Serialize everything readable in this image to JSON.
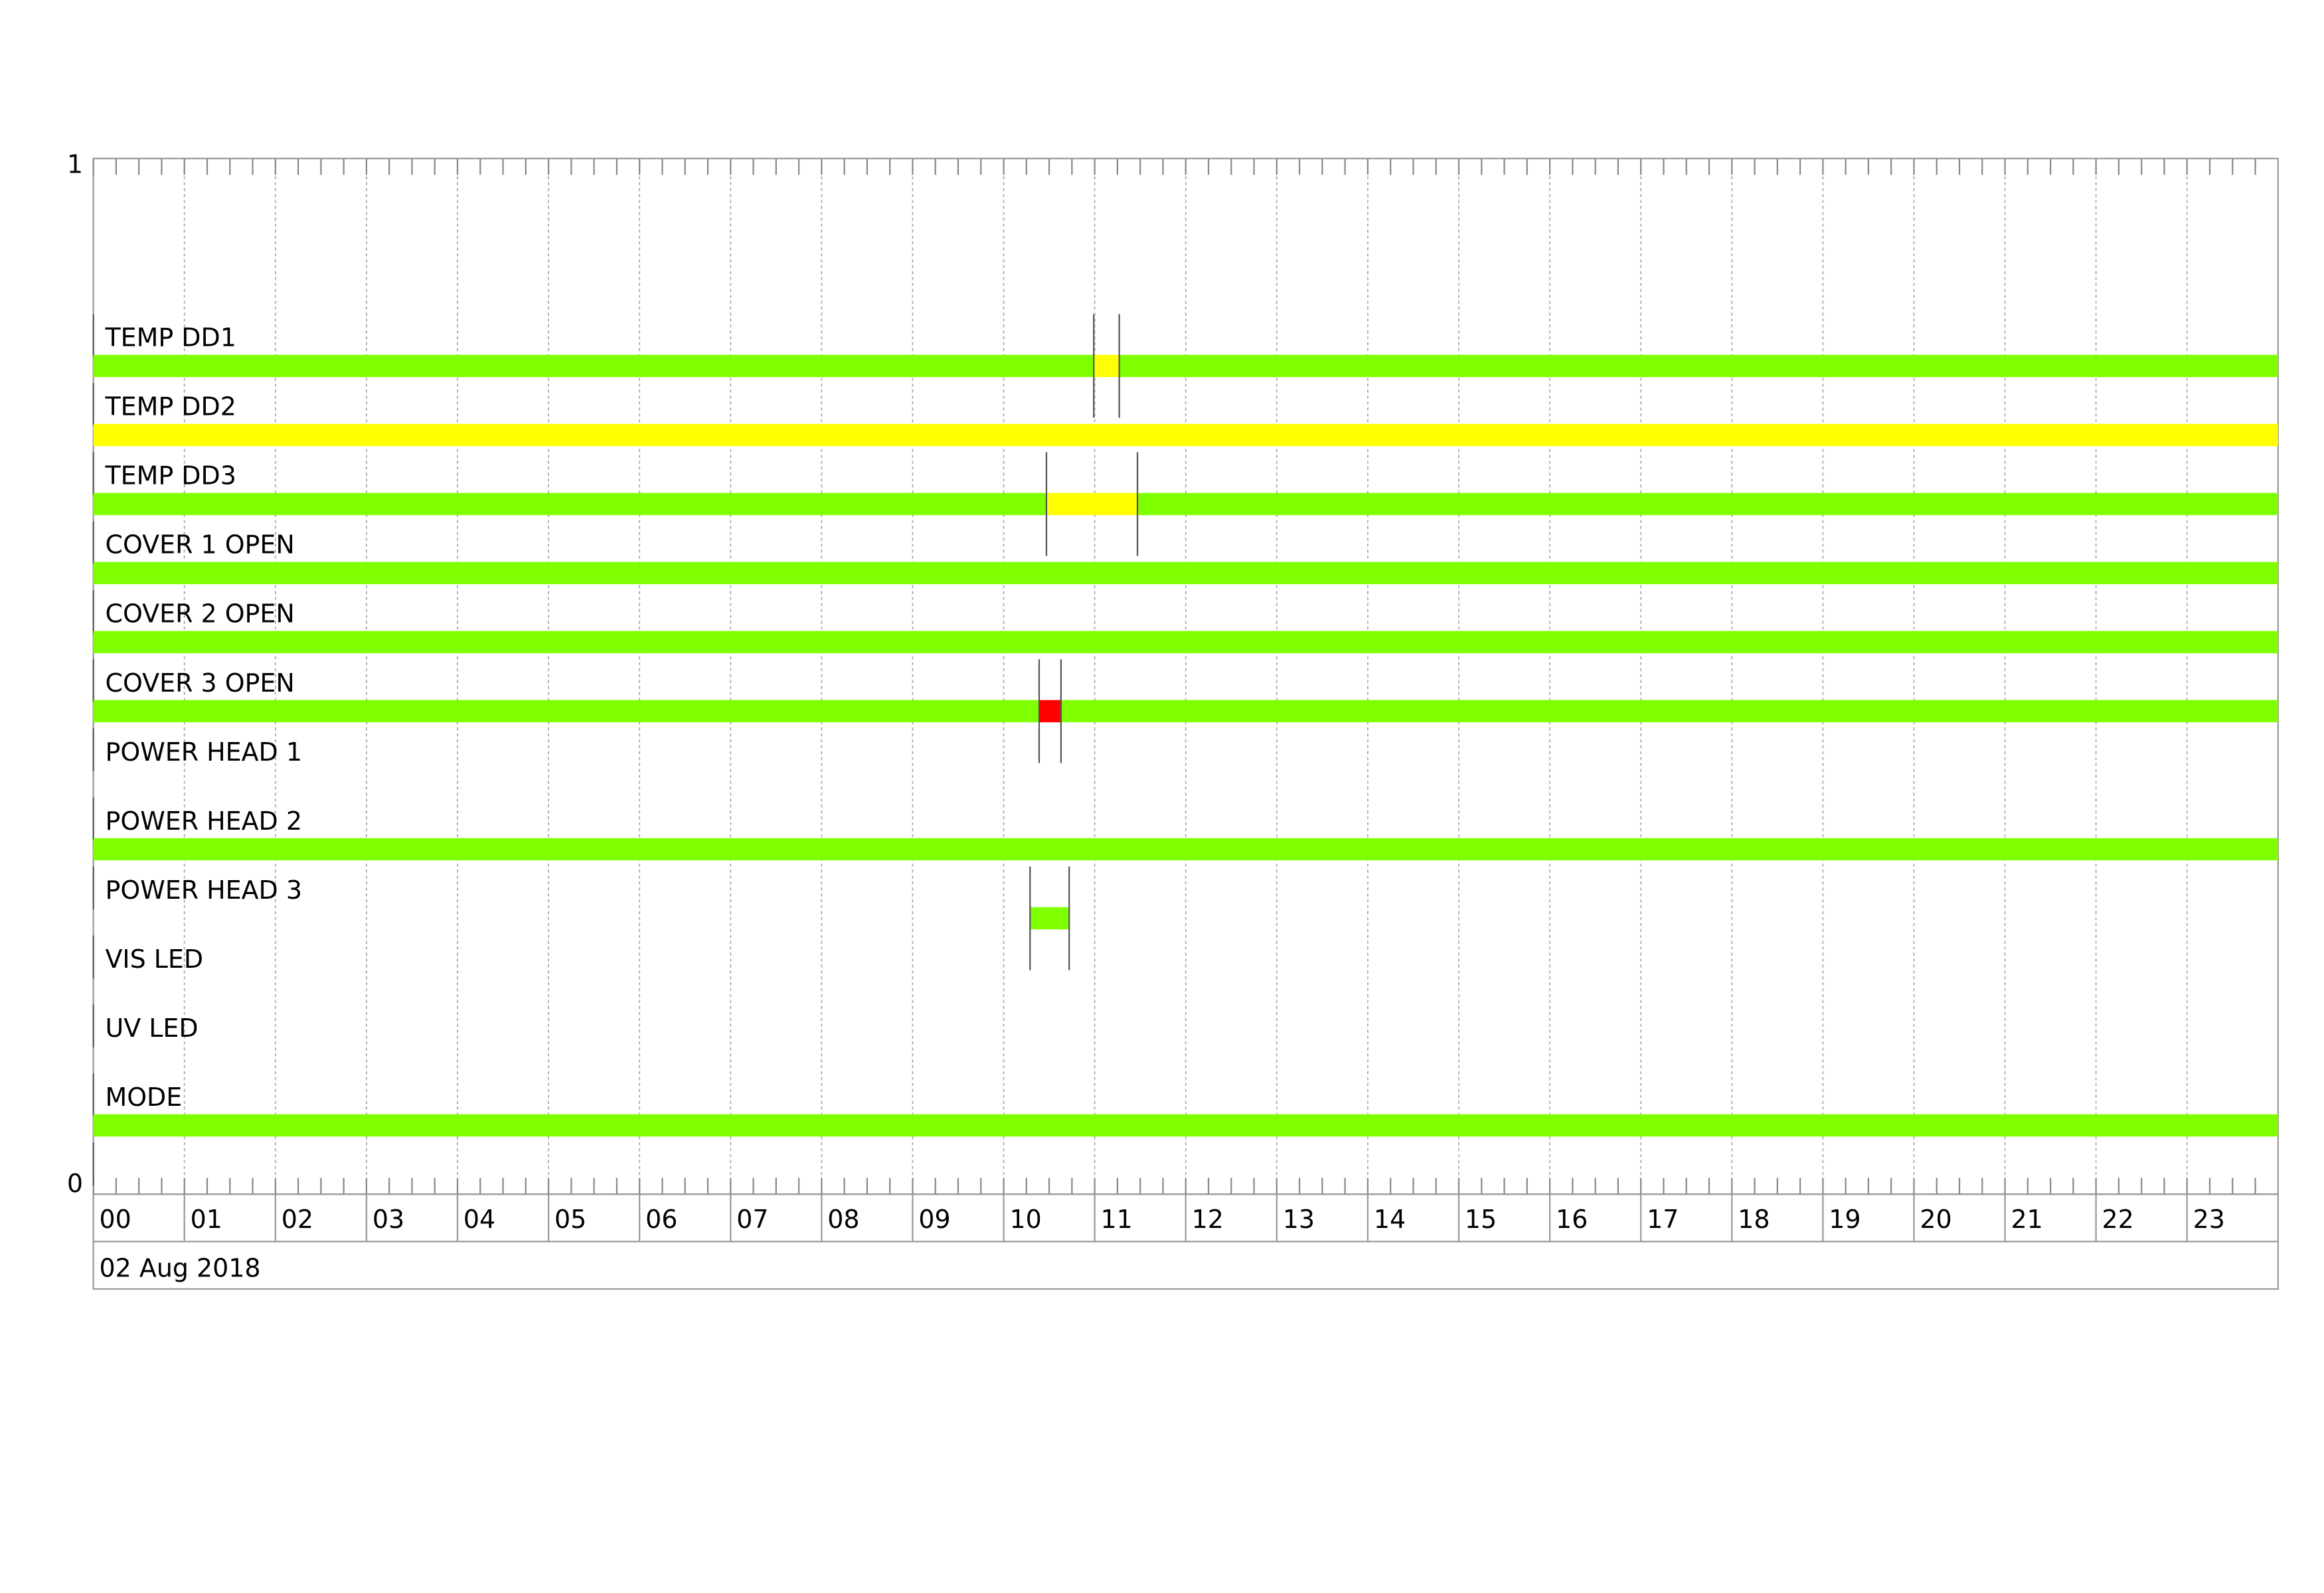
{
  "chart_data": {
    "type": "timeline",
    "xlim": [
      0,
      24
    ],
    "xticks": [
      {
        "value": 0,
        "label": "00"
      },
      {
        "value": 1,
        "label": "01"
      },
      {
        "value": 2,
        "label": "02"
      },
      {
        "value": 3,
        "label": "03"
      },
      {
        "value": 4,
        "label": "04"
      },
      {
        "value": 5,
        "label": "05"
      },
      {
        "value": 6,
        "label": "06"
      },
      {
        "value": 7,
        "label": "07"
      },
      {
        "value": 8,
        "label": "08"
      },
      {
        "value": 9,
        "label": "09"
      },
      {
        "value": 10,
        "label": "10"
      },
      {
        "value": 11,
        "label": "11"
      },
      {
        "value": 12,
        "label": "12"
      },
      {
        "value": 13,
        "label": "13"
      },
      {
        "value": 14,
        "label": "14"
      },
      {
        "value": 15,
        "label": "15"
      },
      {
        "value": 16,
        "label": "16"
      },
      {
        "value": 17,
        "label": "17"
      },
      {
        "value": 18,
        "label": "18"
      },
      {
        "value": 19,
        "label": "19"
      },
      {
        "value": 20,
        "label": "20"
      },
      {
        "value": 21,
        "label": "21"
      },
      {
        "value": 22,
        "label": "22"
      },
      {
        "value": 23,
        "label": "23"
      }
    ],
    "ylim": [
      0,
      1
    ],
    "yticks": [
      0,
      1
    ],
    "date_label": "02 Aug 2018",
    "grid": true,
    "rows": [
      {
        "name": "TEMP DD1",
        "segments": [
          {
            "start": 0,
            "end": 10.99,
            "color": "#7fff00"
          },
          {
            "start": 10.99,
            "end": 11.27,
            "color": "#ffff00"
          },
          {
            "start": 11.27,
            "end": 24,
            "color": "#7fff00"
          }
        ]
      },
      {
        "name": "TEMP DD2",
        "segments": [
          {
            "start": 0,
            "end": 24,
            "color": "#ffff00"
          }
        ]
      },
      {
        "name": "TEMP DD3",
        "segments": [
          {
            "start": 0,
            "end": 10.47,
            "color": "#7fff00"
          },
          {
            "start": 10.47,
            "end": 11.47,
            "color": "#ffff00"
          },
          {
            "start": 11.47,
            "end": 24,
            "color": "#7fff00"
          }
        ]
      },
      {
        "name": "COVER 1 OPEN",
        "segments": [
          {
            "start": 0,
            "end": 24,
            "color": "#7fff00"
          }
        ]
      },
      {
        "name": "COVER 2 OPEN",
        "segments": [
          {
            "start": 0,
            "end": 24,
            "color": "#7fff00"
          }
        ]
      },
      {
        "name": "COVER 3 OPEN",
        "segments": [
          {
            "start": 0,
            "end": 10.39,
            "color": "#7fff00"
          },
          {
            "start": 10.39,
            "end": 10.63,
            "color": "#ff0000"
          },
          {
            "start": 10.63,
            "end": 24,
            "color": "#7fff00"
          }
        ]
      },
      {
        "name": "POWER HEAD 1",
        "segments": []
      },
      {
        "name": "POWER HEAD 2",
        "segments": [
          {
            "start": 0,
            "end": 24,
            "color": "#7fff00"
          }
        ]
      },
      {
        "name": "POWER HEAD 3",
        "segments": [
          {
            "start": 10.29,
            "end": 10.72,
            "color": "#7fff00"
          }
        ]
      },
      {
        "name": "VIS LED",
        "segments": []
      },
      {
        "name": "UV LED",
        "segments": []
      },
      {
        "name": "MODE",
        "segments": [
          {
            "start": 0,
            "end": 24,
            "color": "#7fff00"
          }
        ]
      }
    ]
  }
}
